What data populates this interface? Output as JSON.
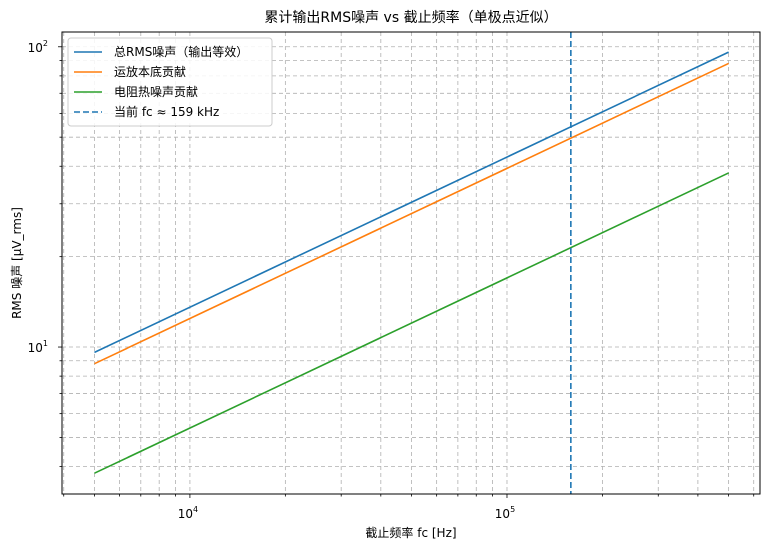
{
  "chart_data": {
    "type": "line",
    "title": "累计输出RMS噪声 vs 截止频率（单极点近似）",
    "xlabel": "截止频率 fc [Hz]",
    "ylabel": "RMS 噪声 [μV_rms]",
    "xscale": "log",
    "yscale": "log",
    "xlim": [
      3950,
      628000
    ],
    "ylim": [
      3.24,
      112
    ],
    "grid": true,
    "grid_style": "dashed",
    "legend_position": "upper left",
    "x_major_ticks": [
      {
        "value": 10000,
        "base": "10",
        "exp": "4"
      },
      {
        "value": 100000,
        "base": "10",
        "exp": "5"
      }
    ],
    "y_major_ticks": [
      {
        "value": 10,
        "base": "10",
        "exp": "1"
      },
      {
        "value": 100,
        "base": "10",
        "exp": "2"
      }
    ],
    "x": [
      5000,
      500000
    ],
    "series": [
      {
        "name": "总RMS噪声（输出等效）",
        "color": "#1f77b4",
        "style": "solid",
        "values": [
          9.6,
          96
        ]
      },
      {
        "name": "运放本底贡献",
        "color": "#ff7f0e",
        "style": "solid",
        "values": [
          8.8,
          88
        ]
      },
      {
        "name": "电阻热噪声贡献",
        "color": "#2ca02c",
        "style": "solid",
        "values": [
          3.8,
          38
        ]
      }
    ],
    "vlines": [
      {
        "name": "当前 fc ≈ 159 kHz",
        "x": 159000,
        "color": "#1f77b4",
        "style": "dashed"
      }
    ]
  }
}
